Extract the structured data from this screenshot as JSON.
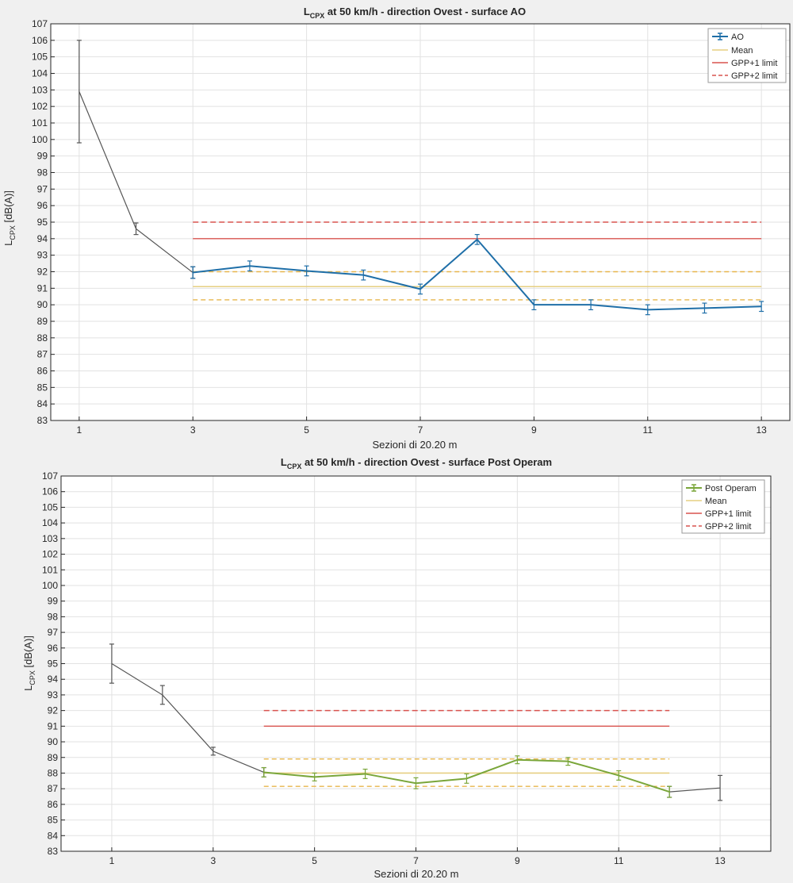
{
  "colors": {
    "background": "#f0f0f0",
    "plot_bg": "#ffffff",
    "grid": "#e2e2e2",
    "axis": "#262626",
    "pre_line": "#555555",
    "ao_series": "#1f6fa8",
    "post_series": "#7aa63a",
    "mean": "#e6cf82",
    "band": "#e7b64c",
    "gpp1": "#d9534f",
    "gpp2": "#d9534f"
  },
  "chart_data": [
    {
      "type": "line",
      "title_prefix": "L",
      "title_sub": "CPX",
      "title_rest": " at 50 km/h - direction Ovest - surface AO",
      "xlabel": "Sezioni di 20.20 m",
      "ylabel_main": "L",
      "ylabel_sub": "CPX",
      "ylabel_rest": " [dB(A)]",
      "xlim": [
        0.5,
        13.5
      ],
      "ylim": [
        83,
        107
      ],
      "xticks": [
        "1",
        "3",
        "5",
        "7",
        "9",
        "11",
        "13"
      ],
      "xtick_values": [
        1,
        3,
        5,
        7,
        9,
        11,
        13
      ],
      "yticks": [
        "83",
        "84",
        "85",
        "86",
        "87",
        "88",
        "89",
        "90",
        "91",
        "92",
        "93",
        "94",
        "95",
        "96",
        "97",
        "98",
        "99",
        "100",
        "101",
        "102",
        "103",
        "104",
        "105",
        "106",
        "107"
      ],
      "grid": true,
      "legend_position": "top-right",
      "legend": [
        "AO",
        "Mean",
        "GPP+1 limit",
        "GPP+2 limit"
      ],
      "pre_series": {
        "x": [
          1,
          2,
          3
        ],
        "y": [
          102.9,
          94.6,
          91.95
        ],
        "err": [
          3.1,
          0.35,
          0.35
        ]
      },
      "series": {
        "name": "AO",
        "x": [
          3,
          4,
          5,
          6,
          7,
          8,
          9,
          10,
          11,
          12,
          13
        ],
        "y": [
          91.95,
          92.35,
          92.05,
          91.8,
          90.95,
          93.95,
          90.0,
          90.0,
          89.7,
          89.8,
          89.9
        ],
        "err": [
          0.35,
          0.3,
          0.3,
          0.3,
          0.3,
          0.3,
          0.3,
          0.3,
          0.3,
          0.3,
          0.3
        ]
      },
      "ref_x": [
        3,
        13
      ],
      "mean": 91.1,
      "band": [
        90.3,
        92.0
      ],
      "gpp1": 94.0,
      "gpp2": 95.0
    },
    {
      "type": "line",
      "title_prefix": "L",
      "title_sub": "CPX",
      "title_rest": " at 50 km/h - direction Ovest - surface Post Operam",
      "xlabel": "Sezioni di 20.20 m",
      "ylabel_main": "L",
      "ylabel_sub": "CPX",
      "ylabel_rest": " [dB(A)]",
      "xlim": [
        0,
        14
      ],
      "ylim": [
        83,
        107
      ],
      "xticks": [
        "1",
        "3",
        "5",
        "7",
        "9",
        "11",
        "13"
      ],
      "xtick_values": [
        1,
        3,
        5,
        7,
        9,
        11,
        13
      ],
      "yticks": [
        "83",
        "84",
        "85",
        "86",
        "87",
        "88",
        "89",
        "90",
        "91",
        "92",
        "93",
        "94",
        "95",
        "96",
        "97",
        "98",
        "99",
        "100",
        "101",
        "102",
        "103",
        "104",
        "105",
        "106",
        "107"
      ],
      "grid": true,
      "legend_position": "top-right",
      "legend": [
        "Post Operam",
        "Mean",
        "GPP+1 limit",
        "GPP+2 limit"
      ],
      "pre_series": {
        "x": [
          1,
          2,
          3,
          4
        ],
        "y": [
          95.0,
          93.0,
          89.4,
          88.05
        ],
        "err": [
          1.25,
          0.6,
          0.25,
          0.3
        ]
      },
      "series": {
        "name": "Post Operam",
        "x": [
          4,
          5,
          6,
          7,
          8,
          9,
          10,
          11,
          12
        ],
        "y": [
          88.05,
          87.75,
          87.95,
          87.35,
          87.65,
          88.85,
          88.75,
          87.85,
          86.8
        ],
        "err": [
          0.3,
          0.25,
          0.3,
          0.35,
          0.3,
          0.25,
          0.25,
          0.3,
          0.35
        ]
      },
      "post_series": {
        "x": [
          12,
          13
        ],
        "y": [
          86.8,
          87.05
        ],
        "err": [
          0.35,
          0.8
        ]
      },
      "ref_x": [
        4,
        12
      ],
      "mean": 88.0,
      "band": [
        87.15,
        88.9
      ],
      "gpp1": 91.0,
      "gpp2": 92.0
    }
  ]
}
